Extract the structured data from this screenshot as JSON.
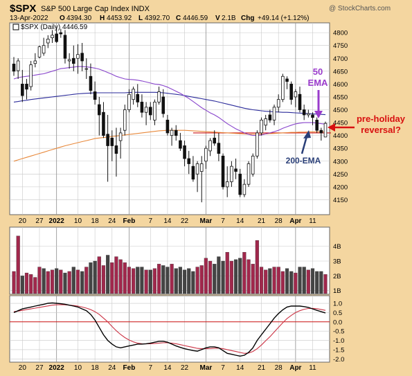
{
  "header": {
    "symbol": "$SPX",
    "name": "S&P 500 Large Cap Index INDX",
    "watermark": "@ StockCharts.com",
    "date": "13-Apr-2022",
    "o_label": "O",
    "o_val": "4394.30",
    "h_label": "H",
    "h_val": "4453.92",
    "l_label": "L",
    "l_val": "4392.70",
    "c_label": "C",
    "c_val": "4446.59",
    "v_label": "V",
    "v_val": "2.1B",
    "chg_label": "Chg",
    "chg_val": "+49.14 (+1.12%)",
    "legend": "$SPX (Daily) 4446.59"
  },
  "annotations": {
    "ema50": [
      "50",
      "EMA"
    ],
    "ema200": "200-EMA",
    "reversal": [
      "pre-holiday",
      "reversal?"
    ]
  },
  "colors": {
    "background": "#f4d6a0",
    "panel": "#ffffff",
    "grid": "#c8c8c8",
    "up": "#1a1a1a",
    "down": "#1a1a1a",
    "ema50": "#8844cc",
    "ema200": "#2a2a9a",
    "ema_orange": "#e8883a",
    "support": "#cc1111",
    "vol_up": "#a0284c",
    "vol_down": "#444444",
    "macd": "#000000",
    "signal": "#cc3344",
    "anno_purple": "#9a3ccc",
    "anno_red": "#d81010",
    "anno_navy": "#2a3f78"
  },
  "chart_data": [
    {
      "type": "candlestick",
      "ylim": [
        4100,
        4830
      ],
      "yticks": [
        4150,
        4200,
        4250,
        4300,
        4350,
        4400,
        4450,
        4500,
        4550,
        4600,
        4650,
        4700,
        4750,
        4800
      ],
      "xticks": [
        "20",
        "27",
        "2022",
        "10",
        "18",
        "24",
        "Feb",
        "7",
        "14",
        "22",
        "Mar",
        "7",
        "14",
        "21",
        "28",
        "Apr",
        "11"
      ],
      "support_level": 4410,
      "ohlc": [
        [
          4678,
          4705,
          4632,
          4650
        ],
        [
          4652,
          4700,
          4620,
          4690
        ],
        [
          4600,
          4655,
          4530,
          4555
        ],
        [
          4600,
          4620,
          4540,
          4580
        ],
        [
          4590,
          4690,
          4575,
          4675
        ],
        [
          4680,
          4720,
          4665,
          4690
        ],
        [
          4705,
          4750,
          4700,
          4745
        ],
        [
          4720,
          4780,
          4710,
          4750
        ],
        [
          4760,
          4790,
          4740,
          4775
        ],
        [
          4780,
          4810,
          4760,
          4790
        ],
        [
          4795,
          4820,
          4760,
          4765
        ],
        [
          4800,
          4815,
          4780,
          4795
        ],
        [
          4790,
          4810,
          4680,
          4700
        ],
        [
          4690,
          4720,
          4660,
          4695
        ],
        [
          4700,
          4750,
          4650,
          4680
        ],
        [
          4700,
          4755,
          4640,
          4715
        ],
        [
          4720,
          4760,
          4650,
          4690
        ],
        [
          4660,
          4700,
          4620,
          4660
        ],
        [
          4630,
          4680,
          4560,
          4575
        ],
        [
          4570,
          4610,
          4520,
          4540
        ],
        [
          4520,
          4550,
          4400,
          4480
        ],
        [
          4490,
          4530,
          4390,
          4400
        ],
        [
          4405,
          4480,
          4220,
          4360
        ],
        [
          4390,
          4420,
          4300,
          4360
        ],
        [
          4360,
          4430,
          4240,
          4330
        ],
        [
          4380,
          4430,
          4310,
          4410
        ],
        [
          4420,
          4520,
          4400,
          4500
        ],
        [
          4500,
          4580,
          4490,
          4560
        ],
        [
          4540,
          4590,
          4520,
          4580
        ],
        [
          4560,
          4600,
          4510,
          4530
        ],
        [
          4530,
          4560,
          4470,
          4490
        ],
        [
          4490,
          4530,
          4440,
          4510
        ],
        [
          4510,
          4530,
          4460,
          4480
        ],
        [
          4460,
          4540,
          4440,
          4530
        ],
        [
          4530,
          4590,
          4520,
          4570
        ],
        [
          4550,
          4580,
          4470,
          4485
        ],
        [
          4460,
          4480,
          4400,
          4410
        ],
        [
          4400,
          4430,
          4360,
          4420
        ],
        [
          4420,
          4440,
          4380,
          4400
        ],
        [
          4380,
          4410,
          4340,
          4350
        ],
        [
          4360,
          4380,
          4280,
          4310
        ],
        [
          4310,
          4340,
          4250,
          4290
        ],
        [
          4280,
          4320,
          4220,
          4230
        ],
        [
          4250,
          4300,
          4180,
          4290
        ],
        [
          4260,
          4320,
          4140,
          4290
        ],
        [
          4300,
          4360,
          4270,
          4350
        ],
        [
          4340,
          4390,
          4320,
          4380
        ],
        [
          4390,
          4420,
          4360,
          4370
        ],
        [
          4370,
          4410,
          4300,
          4330
        ],
        [
          4320,
          4330,
          4190,
          4200
        ],
        [
          4200,
          4280,
          4160,
          4220
        ],
        [
          4220,
          4300,
          4200,
          4280
        ],
        [
          4270,
          4310,
          4230,
          4260
        ],
        [
          4250,
          4270,
          4160,
          4170
        ],
        [
          4170,
          4230,
          4160,
          4210
        ],
        [
          4210,
          4300,
          4200,
          4290
        ],
        [
          4250,
          4330,
          4240,
          4320
        ],
        [
          4320,
          4420,
          4310,
          4410
        ],
        [
          4410,
          4470,
          4400,
          4460
        ],
        [
          4440,
          4480,
          4420,
          4465
        ],
        [
          4480,
          4500,
          4450,
          4460
        ],
        [
          4460,
          4520,
          4440,
          4510
        ],
        [
          4510,
          4560,
          4490,
          4540
        ],
        [
          4540,
          4640,
          4530,
          4630
        ],
        [
          4620,
          4630,
          4580,
          4610
        ],
        [
          4600,
          4610,
          4520,
          4540
        ],
        [
          4550,
          4580,
          4510,
          4570
        ],
        [
          4560,
          4590,
          4490,
          4500
        ],
        [
          4500,
          4520,
          4460,
          4480
        ],
        [
          4480,
          4500,
          4470,
          4485
        ],
        [
          4480,
          4490,
          4440,
          4470
        ],
        [
          4460,
          4470,
          4410,
          4420
        ],
        [
          4420,
          4430,
          4380,
          4410
        ],
        [
          4394,
          4454,
          4393,
          4447
        ]
      ],
      "ema50": [
        4620,
        4625,
        4628,
        4630,
        4632,
        4635,
        4638,
        4640,
        4645,
        4650,
        4655,
        4660,
        4662,
        4664,
        4666,
        4668,
        4668,
        4667,
        4665,
        4662,
        4658,
        4652,
        4645,
        4638,
        4630,
        4625,
        4620,
        4618,
        4617,
        4615,
        4612,
        4608,
        4604,
        4600,
        4598,
        4594,
        4588,
        4580,
        4572,
        4564,
        4554,
        4544,
        4532,
        4520,
        4508,
        4498,
        4488,
        4480,
        4470,
        4458,
        4446,
        4436,
        4426,
        4418,
        4410,
        4404,
        4400,
        4400,
        4402,
        4406,
        4410,
        4415,
        4420,
        4428,
        4434,
        4440,
        4445,
        4448,
        4450,
        4450,
        4450,
        4448,
        4446,
        4444
      ],
      "ema200": [
        4530,
        4532,
        4535,
        4537,
        4540,
        4542,
        4544,
        4546,
        4548,
        4550,
        4552,
        4554,
        4556,
        4558,
        4560,
        4562,
        4563,
        4564,
        4565,
        4566,
        4566,
        4566,
        4566,
        4566,
        4566,
        4566,
        4566,
        4567,
        4568,
        4568,
        4568,
        4568,
        4568,
        4568,
        4567,
        4566,
        4564,
        4562,
        4560,
        4558,
        4555,
        4552,
        4549,
        4546,
        4543,
        4540,
        4537,
        4534,
        4530,
        4526,
        4522,
        4518,
        4514,
        4510,
        4506,
        4503,
        4500,
        4498,
        4496,
        4494,
        4493,
        4492,
        4491,
        4490,
        4490,
        4489,
        4488,
        4487,
        4486,
        4485,
        4484,
        4483,
        4482,
        4481
      ],
      "ema_orange": [
        4300,
        4305,
        4310,
        4315,
        4320,
        4325,
        4330,
        4335,
        4340,
        4345,
        4350,
        4355,
        4360,
        4364,
        4368,
        4372,
        4376,
        4380,
        4384,
        4388,
        4390,
        4392,
        4394,
        4396,
        4398,
        4400,
        4402,
        4404,
        4406,
        4408,
        4410,
        4412,
        4414,
        4416,
        4418,
        4419,
        4420,
        4420,
        4420,
        4420,
        4420,
        4419,
        4418,
        4417,
        4416,
        4415,
        4414,
        4413,
        4412,
        4411,
        4410,
        4409,
        4408,
        4407,
        4406,
        4405,
        4405,
        4405,
        4405,
        4406,
        4407,
        4408,
        4409,
        4410,
        4411,
        4412,
        4412,
        4413,
        4413,
        4414,
        4414,
        4414,
        4415,
        4415
      ]
    },
    {
      "type": "bar",
      "name": "volume",
      "ylim": [
        0.8,
        5.2
      ],
      "yticks_labels": [
        "4B",
        "3B",
        "2B",
        "1B"
      ],
      "yticks": [
        4,
        3,
        2,
        1
      ],
      "values": [
        2.3,
        4.7,
        2.0,
        2.2,
        2.1,
        1.9,
        2.6,
        2.5,
        2.3,
        2.4,
        2.5,
        2.4,
        2.2,
        2.3,
        2.6,
        2.4,
        2.3,
        2.6,
        2.9,
        3.0,
        3.3,
        2.7,
        3.4,
        2.9,
        3.3,
        3.1,
        2.9,
        2.6,
        2.5,
        2.6,
        2.6,
        2.4,
        2.4,
        2.5,
        2.8,
        2.7,
        2.6,
        2.8,
        2.5,
        2.6,
        2.4,
        2.5,
        2.3,
        2.6,
        2.7,
        3.2,
        3.0,
        2.8,
        3.3,
        3.0,
        3.6,
        3.0,
        3.1,
        3.2,
        3.6,
        3.1,
        2.8,
        4.4,
        2.6,
        2.4,
        2.5,
        2.6,
        2.6,
        2.3,
        2.5,
        2.3,
        2.2,
        2.6,
        2.6,
        2.4,
        2.5,
        2.3,
        2.3,
        2.1
      ],
      "up_flags": [
        1,
        1,
        0,
        1,
        1,
        1,
        1,
        0,
        1,
        1,
        0,
        1,
        0,
        1,
        0,
        1,
        0,
        1,
        0,
        0,
        1,
        1,
        0,
        1,
        1,
        1,
        1,
        1,
        1,
        0,
        0,
        1,
        0,
        1,
        1,
        0,
        0,
        1,
        0,
        0,
        0,
        0,
        0,
        1,
        1,
        1,
        1,
        0,
        0,
        0,
        1,
        1,
        0,
        0,
        1,
        1,
        1,
        1,
        1,
        1,
        0,
        1,
        1,
        1,
        0,
        0,
        1,
        0,
        0,
        1,
        0,
        0,
        0,
        1
      ]
    },
    {
      "type": "line",
      "name": "MACD",
      "ylim": [
        -2.1,
        1.3
      ],
      "yticks": [
        1.0,
        0.5,
        0.0,
        -0.5,
        -1.0,
        -1.5,
        -2.0
      ],
      "yticks_labels": [
        "1.0",
        "0.5",
        "0.0",
        "-0.5",
        "-1.0",
        "-1.5",
        "-2.0"
      ],
      "macd": [
        0.5,
        0.6,
        0.7,
        0.75,
        0.8,
        0.85,
        0.9,
        0.95,
        1.0,
        1.02,
        1.0,
        0.98,
        0.95,
        0.9,
        0.85,
        0.8,
        0.7,
        0.6,
        0.4,
        0.1,
        -0.3,
        -0.7,
        -1.0,
        -1.2,
        -1.35,
        -1.4,
        -1.35,
        -1.3,
        -1.25,
        -1.2,
        -1.2,
        -1.18,
        -1.15,
        -1.1,
        -1.05,
        -1.05,
        -1.1,
        -1.2,
        -1.3,
        -1.38,
        -1.45,
        -1.5,
        -1.55,
        -1.58,
        -1.5,
        -1.4,
        -1.35,
        -1.35,
        -1.4,
        -1.55,
        -1.7,
        -1.75,
        -1.8,
        -1.85,
        -1.8,
        -1.65,
        -1.4,
        -1.0,
        -0.7,
        -0.4,
        -0.1,
        0.2,
        0.45,
        0.65,
        0.8,
        0.85,
        0.85,
        0.85,
        0.82,
        0.78,
        0.7,
        0.62,
        0.55,
        0.48
      ],
      "signal": [
        0.55,
        0.58,
        0.62,
        0.66,
        0.7,
        0.74,
        0.78,
        0.82,
        0.86,
        0.9,
        0.92,
        0.93,
        0.92,
        0.9,
        0.88,
        0.85,
        0.8,
        0.74,
        0.66,
        0.55,
        0.4,
        0.2,
        0.0,
        -0.25,
        -0.48,
        -0.68,
        -0.85,
        -0.98,
        -1.08,
        -1.15,
        -1.18,
        -1.19,
        -1.18,
        -1.17,
        -1.15,
        -1.13,
        -1.13,
        -1.15,
        -1.18,
        -1.23,
        -1.28,
        -1.33,
        -1.38,
        -1.43,
        -1.45,
        -1.45,
        -1.44,
        -1.42,
        -1.42,
        -1.45,
        -1.5,
        -1.55,
        -1.6,
        -1.65,
        -1.7,
        -1.68,
        -1.6,
        -1.45,
        -1.25,
        -1.02,
        -0.8,
        -0.55,
        -0.3,
        -0.05,
        0.18,
        0.35,
        0.5,
        0.6,
        0.68,
        0.72,
        0.73,
        0.71,
        0.67,
        0.62
      ]
    }
  ]
}
